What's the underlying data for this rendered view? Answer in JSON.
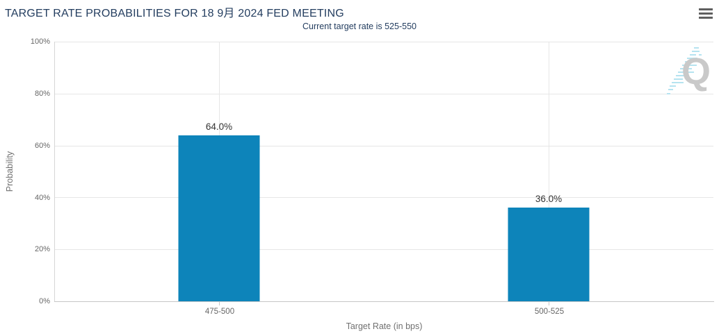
{
  "header": {
    "title": "TARGET RATE PROBABILITIES FOR 18 9月 2024 FED MEETING",
    "subtitle": "Current target rate is 525-550"
  },
  "menu": {
    "icon": "hamburger-menu-icon"
  },
  "colors": {
    "title_text": "#233d5f",
    "bar": "#0d84ba",
    "axis_text": "#666666",
    "gridline": "#e6e6e6",
    "data_label": "#333333",
    "watermark_q": "#c9c9c9",
    "watermark_dashes": "#b5e3f0"
  },
  "watermark": {
    "letter": "Q"
  },
  "chart_data": {
    "type": "bar",
    "title": "TARGET RATE PROBABILITIES FOR 18 9月 2024 FED MEETING",
    "subtitle": "Current target rate is 525-550",
    "categories": [
      "475-500",
      "500-525"
    ],
    "series": [
      {
        "name": "Probability",
        "values": [
          64.0,
          36.0
        ]
      }
    ],
    "value_labels": [
      "64.0%",
      "36.0%"
    ],
    "xlabel": "Target Rate (in bps)",
    "ylabel": "Probability",
    "ylim": [
      0,
      100
    ],
    "ytick_labels": [
      "0%",
      "20%",
      "40%",
      "60%",
      "80%",
      "100%"
    ],
    "grid": true,
    "legend_position": "none"
  }
}
